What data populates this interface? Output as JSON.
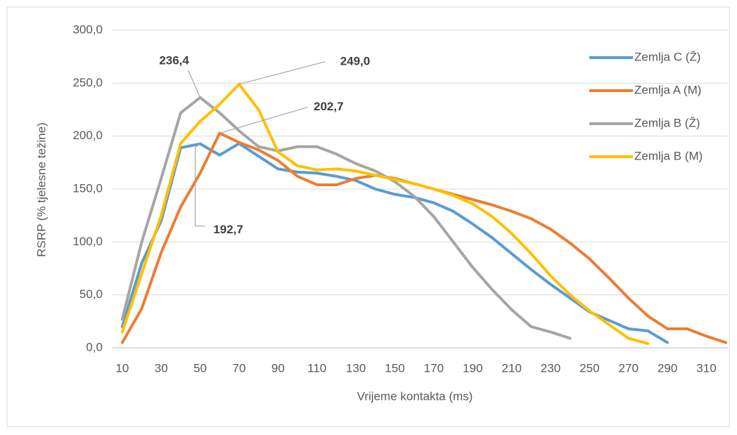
{
  "chart_data": {
    "type": "line",
    "x_label": "Vrijeme kontakta (ms)",
    "y_label": "RSRP (% tjelesne težine)",
    "xlim": [
      5,
      325
    ],
    "xticks": [
      10,
      30,
      50,
      70,
      90,
      110,
      130,
      150,
      170,
      190,
      210,
      230,
      250,
      270,
      290,
      310
    ],
    "ylim": [
      0,
      300
    ],
    "yticks": [
      {
        "value": 0,
        "label": "0,0"
      },
      {
        "value": 50,
        "label": "50,0"
      },
      {
        "value": 100,
        "label": "100,0"
      },
      {
        "value": 150,
        "label": "150,0"
      },
      {
        "value": 200,
        "label": "200,0"
      },
      {
        "value": 250,
        "label": "250,0"
      },
      {
        "value": 300,
        "label": "300,0"
      }
    ],
    "grid": true,
    "legend": "right",
    "series": [
      {
        "name": "Zemlja C (Ž)",
        "color": "#5b9bd5",
        "x": [
          10,
          20,
          30,
          40,
          50,
          60,
          70,
          80,
          90,
          100,
          110,
          120,
          130,
          140,
          150,
          160,
          170,
          180,
          190,
          200,
          210,
          220,
          230,
          240,
          250,
          260,
          270,
          280,
          290
        ],
        "values": [
          20,
          80,
          120,
          189,
          192.7,
          182,
          193,
          181,
          169,
          166,
          165,
          162,
          158,
          150,
          145,
          142,
          137,
          129,
          117,
          104,
          89,
          74,
          60,
          47,
          34,
          26,
          18,
          16,
          5
        ],
        "value_labels": [
          null,
          null,
          null,
          null,
          "192,7",
          null,
          null,
          null,
          null,
          null,
          null,
          null,
          null,
          null,
          null,
          null,
          null,
          null,
          null,
          null,
          null,
          null,
          null,
          null,
          null,
          null,
          null,
          null,
          null
        ]
      },
      {
        "name": "Zemlja A (M)",
        "color": "#ed7d31",
        "x": [
          10,
          20,
          30,
          40,
          50,
          60,
          70,
          80,
          90,
          100,
          110,
          120,
          130,
          140,
          150,
          160,
          170,
          180,
          190,
          200,
          210,
          220,
          230,
          240,
          250,
          260,
          270,
          280,
          290,
          300,
          310,
          320
        ],
        "values": [
          5,
          37,
          90,
          133,
          165,
          202.7,
          194,
          187,
          177,
          162,
          154,
          154,
          160,
          163,
          160,
          155,
          150,
          145,
          140,
          135,
          129,
          122,
          112,
          99,
          84,
          66,
          47,
          30,
          18,
          18,
          11,
          5
        ],
        "value_labels": [
          null,
          null,
          null,
          null,
          null,
          "202,7",
          null,
          null,
          null,
          null,
          null,
          null,
          null,
          null,
          null,
          null,
          null,
          null,
          null,
          null,
          null,
          null,
          null,
          null,
          null,
          null,
          null,
          null,
          null,
          null,
          null,
          null
        ]
      },
      {
        "name": "Zemlja B (Ž)",
        "color": "#a5a5a5",
        "x": [
          10,
          20,
          30,
          40,
          50,
          60,
          70,
          80,
          90,
          100,
          110,
          120,
          130,
          140,
          150,
          160,
          170,
          180,
          190,
          200,
          210,
          220,
          230,
          240
        ],
        "values": [
          27,
          100,
          160,
          222,
          236.4,
          222,
          205,
          190,
          186,
          190,
          190,
          183,
          174,
          167,
          157,
          143,
          124,
          100,
          76,
          55,
          36,
          20,
          15,
          9
        ],
        "value_labels": [
          null,
          null,
          null,
          null,
          "236,4",
          null,
          null,
          null,
          null,
          null,
          null,
          null,
          null,
          null,
          null,
          null,
          null,
          null,
          null,
          null,
          null,
          null,
          null,
          null
        ]
      },
      {
        "name": "Zemlja B (M)",
        "color": "#ffc000",
        "x": [
          10,
          20,
          30,
          40,
          50,
          60,
          70,
          80,
          90,
          100,
          110,
          120,
          130,
          140,
          150,
          160,
          170,
          180,
          190,
          200,
          210,
          220,
          230,
          240,
          250,
          260,
          270,
          280
        ],
        "values": [
          15,
          70,
          125,
          193,
          214,
          230,
          249.0,
          225,
          185,
          172,
          168,
          169,
          167,
          163,
          159,
          155,
          150,
          144,
          136,
          124,
          108,
          89,
          68,
          50,
          35,
          22,
          9,
          4
        ],
        "value_labels": [
          null,
          null,
          null,
          null,
          null,
          null,
          "249,0",
          null,
          null,
          null,
          null,
          null,
          null,
          null,
          null,
          null,
          null,
          null,
          null,
          null,
          null,
          null,
          null,
          null,
          null,
          null,
          null,
          null
        ]
      }
    ]
  }
}
